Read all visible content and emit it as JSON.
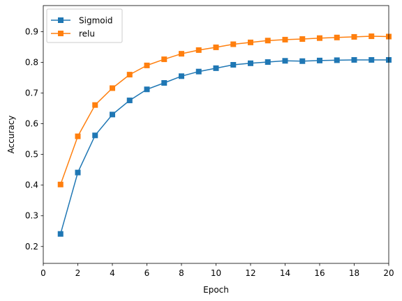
{
  "chart_data": {
    "type": "line",
    "xlabel": "Epoch",
    "ylabel": "Accuracy",
    "xlim": [
      0,
      20
    ],
    "ylim": [
      0.145,
      0.985
    ],
    "xticks": [
      0,
      2,
      4,
      6,
      8,
      10,
      12,
      14,
      16,
      18,
      20
    ],
    "yticks": [
      0.2,
      0.3,
      0.4,
      0.5,
      0.6,
      0.7,
      0.8,
      0.9
    ],
    "grid": false,
    "legend_position": "upper left",
    "x": [
      1,
      2,
      3,
      4,
      5,
      6,
      7,
      8,
      9,
      10,
      11,
      12,
      13,
      14,
      15,
      16,
      17,
      18,
      19,
      20
    ],
    "series": [
      {
        "name": "Sigmoid",
        "color": "#1f77b4",
        "marker": "square",
        "values": [
          0.241,
          0.441,
          0.562,
          0.63,
          0.676,
          0.712,
          0.733,
          0.755,
          0.77,
          0.781,
          0.792,
          0.797,
          0.801,
          0.805,
          0.804,
          0.806,
          0.807,
          0.808,
          0.808,
          0.808
        ]
      },
      {
        "name": "relu",
        "color": "#ff7f0e",
        "marker": "square",
        "values": [
          0.402,
          0.559,
          0.661,
          0.716,
          0.76,
          0.79,
          0.81,
          0.828,
          0.84,
          0.849,
          0.859,
          0.865,
          0.871,
          0.874,
          0.876,
          0.879,
          0.881,
          0.883,
          0.885,
          0.884
        ]
      }
    ]
  }
}
